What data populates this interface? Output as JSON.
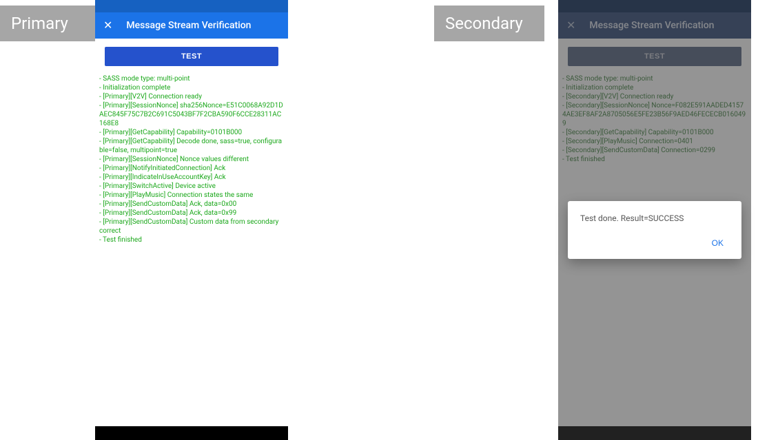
{
  "labels": {
    "primary": "Primary",
    "secondary": "Secondary"
  },
  "appbar": {
    "title": "Message Stream Verification",
    "close_glyph": "✕"
  },
  "buttons": {
    "test": "TEST",
    "ok": "OK"
  },
  "colors": {
    "primary_status_bar": "#1661c1",
    "primary_app_bar": "#1b73e8",
    "secondary_status_bar": "#0f2a57",
    "secondary_app_bar": "#2f4877",
    "test_btn_primary": "#2552cc",
    "log_text_primary": "#1ca81c",
    "log_text_secondary_dim": "#3a7c3a",
    "label_bg": "#a6a6a6",
    "overlay": "rgba(60,60,60,0.55)"
  },
  "primary_logs": [
    " - SASS mode type: multi-point",
    " - Initialization complete",
    " - [Primary][V2V] Connection ready",
    " - [Primary][SessionNonce] sha256Nonce=E51C0068A92D1DAEC845F75C7B2C691C5043BF7F2CBA590F6CCE28311AC168E8",
    " - [Primary][GetCapability] Capability=0101B000",
    " - [Primary][GetCapability] Decode done, sass=true, configurable=false, multipoint=true",
    " - [Primary][SessionNonce] Nonce values different",
    " - [Primary][NotifyInitiatedConnection] Ack",
    " - [Primary][IndicateInUseAccountKey] Ack",
    " - [Primary][SwitchActive] Device active",
    " - [Primary][PlayMusic] Connection states the same",
    " - [Primary][SendCustomData] Ack, data=0x00",
    " - [Primary][SendCustomData] Ack, data=0x99",
    " - [Primary][SendCustomData] Custom data from secondary correct",
    " - Test finished"
  ],
  "secondary_logs": [
    " - SASS mode type: multi-point",
    " - Initialization complete",
    " - [Secondary][V2V] Connection ready",
    " - [Secondary][SessionNonce] Nonce=F082E591AADED41574AE3EF8AF2A8705056E5FE23B56F9AED46FECECB0160499",
    " - [Secondary][GetCapability] Capability=0101B000",
    " - [Secondary][PlayMusic] Connection=0401",
    " - [Secondary][SendCustomData] Connection=0299",
    " - Test finished"
  ],
  "dialog": {
    "message": "Test done. Result=SUCCESS"
  }
}
